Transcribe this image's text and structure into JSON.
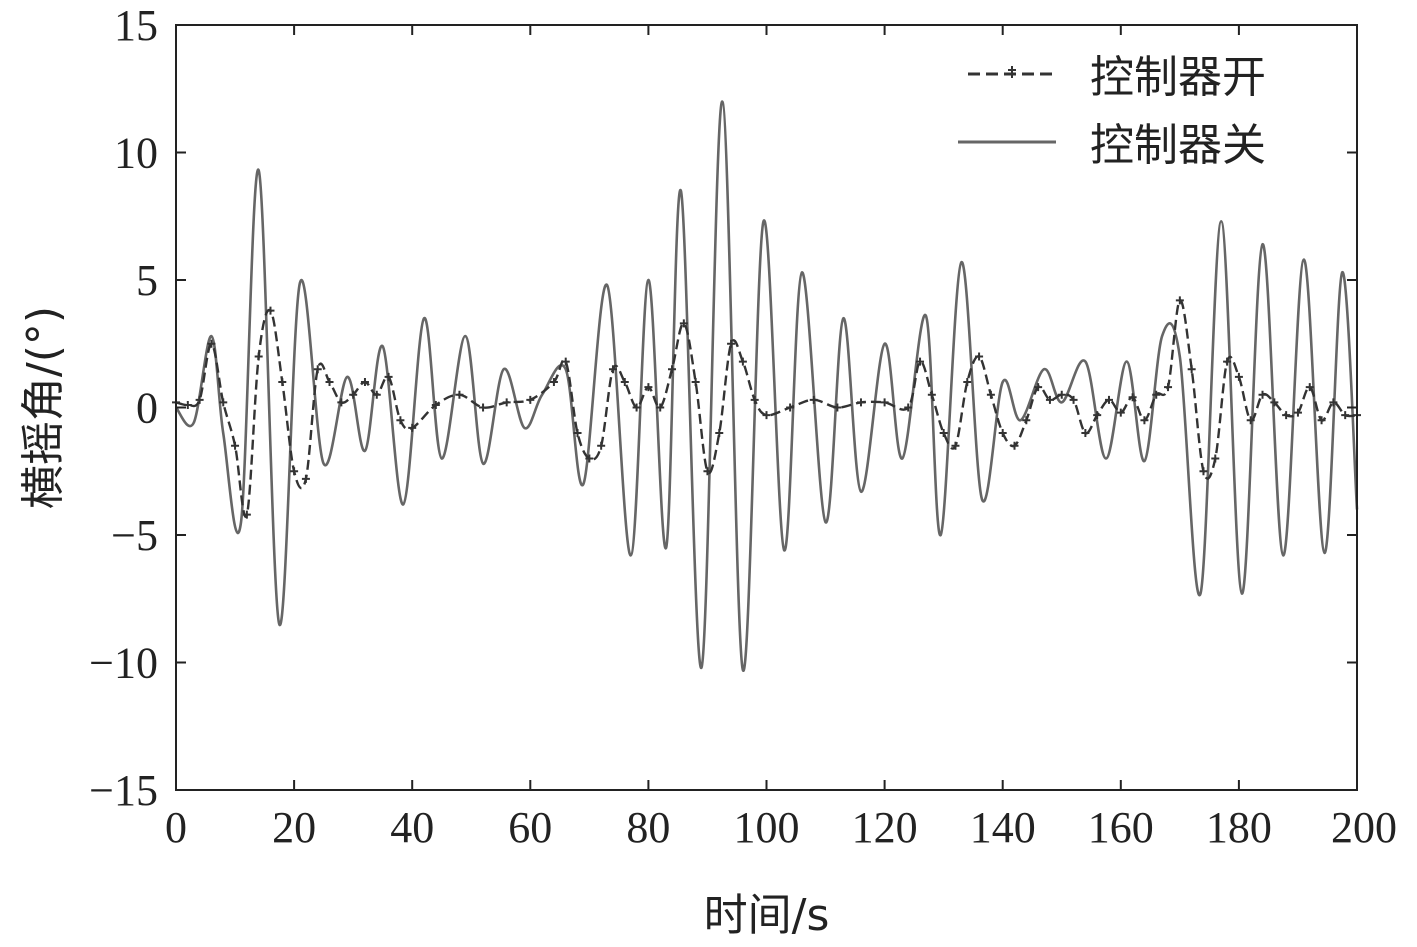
{
  "chart_data": {
    "type": "line",
    "title": "",
    "xlabel": "时间/s",
    "ylabel": "横摇角/(°)",
    "xlim": [
      0,
      200
    ],
    "ylim": [
      -15,
      15
    ],
    "x_ticks": [
      0,
      20,
      40,
      60,
      80,
      100,
      120,
      140,
      160,
      180,
      200
    ],
    "y_ticks": [
      15,
      10,
      5,
      0,
      -5,
      -10,
      -15
    ],
    "y_tick_labels": [
      "15",
      "10",
      "5",
      "0",
      "−5",
      "−10",
      "−15"
    ],
    "grid": false,
    "legend_position": "top-right",
    "series": [
      {
        "name": "控制器开",
        "style": "dashed-marker",
        "color": "#333333",
        "x": [
          0,
          2,
          4,
          6,
          8,
          10,
          12,
          14,
          16,
          18,
          20,
          22,
          24,
          26,
          28,
          30,
          32,
          34,
          36,
          38,
          40,
          44,
          48,
          52,
          56,
          60,
          64,
          66,
          68,
          70,
          72,
          74,
          76,
          78,
          80,
          82,
          84,
          86,
          88,
          90,
          92,
          94,
          96,
          98,
          100,
          104,
          108,
          112,
          116,
          120,
          124,
          126,
          128,
          130,
          132,
          134,
          136,
          138,
          140,
          142,
          144,
          146,
          148,
          150,
          152,
          154,
          156,
          158,
          160,
          162,
          164,
          166,
          168,
          170,
          172,
          174,
          176,
          178,
          180,
          182,
          184,
          186,
          188,
          190,
          192,
          194,
          196,
          198,
          200
        ],
        "y": [
          0.2,
          0.1,
          0.3,
          2.5,
          0.2,
          -1.5,
          -4.2,
          2.0,
          3.8,
          1.0,
          -2.5,
          -2.8,
          1.5,
          1.0,
          0.2,
          0.5,
          1.0,
          0.5,
          1.2,
          -0.5,
          -0.8,
          0.1,
          0.5,
          0.0,
          0.2,
          0.3,
          1.0,
          1.8,
          -1.0,
          -2.0,
          -1.5,
          1.5,
          1.0,
          0.0,
          0.8,
          0.0,
          1.5,
          3.3,
          1.0,
          -2.5,
          -1.0,
          2.5,
          1.8,
          0.3,
          -0.3,
          0.0,
          0.3,
          0.0,
          0.2,
          0.2,
          0.0,
          1.8,
          0.5,
          -1.0,
          -1.5,
          1.0,
          2.0,
          0.5,
          -1.0,
          -1.5,
          -0.5,
          0.8,
          0.3,
          0.5,
          0.3,
          -1.0,
          -0.3,
          0.3,
          -0.2,
          0.4,
          -0.5,
          0.5,
          0.8,
          4.2,
          1.5,
          -2.5,
          -2.0,
          1.8,
          1.2,
          -0.5,
          0.5,
          0.2,
          -0.3,
          -0.2,
          0.8,
          -0.5,
          0.2,
          -0.3,
          -0.3
        ]
      },
      {
        "name": "控制器关",
        "style": "solid",
        "color": "#666666",
        "x": [
          0,
          3,
          6,
          8,
          11,
          14,
          17.5,
          21,
          25,
          29,
          32,
          35,
          38.5,
          42,
          45,
          49,
          52,
          55.5,
          59,
          62,
          66,
          69,
          73,
          77,
          80,
          83,
          85.5,
          89,
          92.5,
          96,
          99.5,
          103,
          106,
          110,
          113,
          116,
          120,
          123,
          127,
          129.5,
          133,
          136.5,
          140,
          143,
          147,
          150,
          154,
          157.5,
          161,
          164,
          167,
          170,
          173.5,
          177,
          180.5,
          184,
          187.5,
          191,
          194.5,
          197.5,
          200
        ],
        "y": [
          0.0,
          -0.6,
          2.8,
          -1.0,
          -4.5,
          9.3,
          -8.5,
          4.9,
          -2.2,
          1.2,
          -1.7,
          2.4,
          -3.8,
          3.5,
          -2.0,
          2.8,
          -2.2,
          1.5,
          -0.8,
          0.5,
          1.5,
          -3.0,
          4.8,
          -5.8,
          5.0,
          -5.5,
          8.5,
          -10.2,
          12.0,
          -10.3,
          7.3,
          -5.6,
          5.3,
          -4.5,
          3.5,
          -3.3,
          2.5,
          -2.0,
          3.6,
          -5.0,
          5.7,
          -3.6,
          1.0,
          -0.5,
          1.5,
          0.2,
          1.8,
          -2.0,
          1.8,
          -2.1,
          2.8,
          2.0,
          -7.3,
          7.3,
          -7.3,
          6.4,
          -5.8,
          5.8,
          -5.7,
          5.3,
          -4.0
        ]
      }
    ]
  }
}
